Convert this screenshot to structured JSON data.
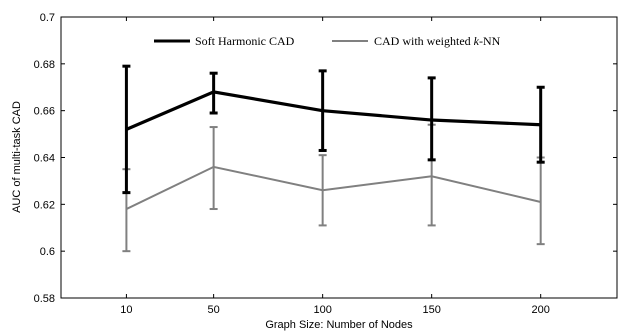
{
  "chart_data": {
    "type": "line",
    "xlabel": "Graph Size: Number of Nodes",
    "ylabel": "AUC of multi-task CAD",
    "x": [
      10,
      50,
      100,
      150,
      200
    ],
    "xlim": [
      -20,
      235
    ],
    "ylim": [
      0.58,
      0.7
    ],
    "yticks": [
      0.58,
      0.6,
      0.62,
      0.64,
      0.66,
      0.68,
      0.7
    ],
    "ytick_labels": [
      "0.58",
      "0.6",
      "0.62",
      "0.64",
      "0.66",
      "0.68",
      "0.7"
    ],
    "xticks": [
      10,
      50,
      100,
      150,
      200
    ],
    "xtick_labels": [
      "10",
      "50",
      "100",
      "150",
      "200"
    ],
    "legend_position": "top-center",
    "series": [
      {
        "name": "Soft Harmonic CAD",
        "color": "#000000",
        "values": [
          0.652,
          0.668,
          0.66,
          0.656,
          0.654
        ],
        "err_low": [
          0.625,
          0.659,
          0.643,
          0.639,
          0.638
        ],
        "err_high": [
          0.679,
          0.676,
          0.677,
          0.674,
          0.67
        ]
      },
      {
        "name": "CAD with weighted k-NN",
        "color": "#808080",
        "values": [
          0.618,
          0.636,
          0.626,
          0.632,
          0.621
        ],
        "err_low": [
          0.6,
          0.618,
          0.611,
          0.611,
          0.603
        ],
        "err_high": [
          0.635,
          0.653,
          0.641,
          0.654,
          0.64
        ]
      }
    ]
  }
}
